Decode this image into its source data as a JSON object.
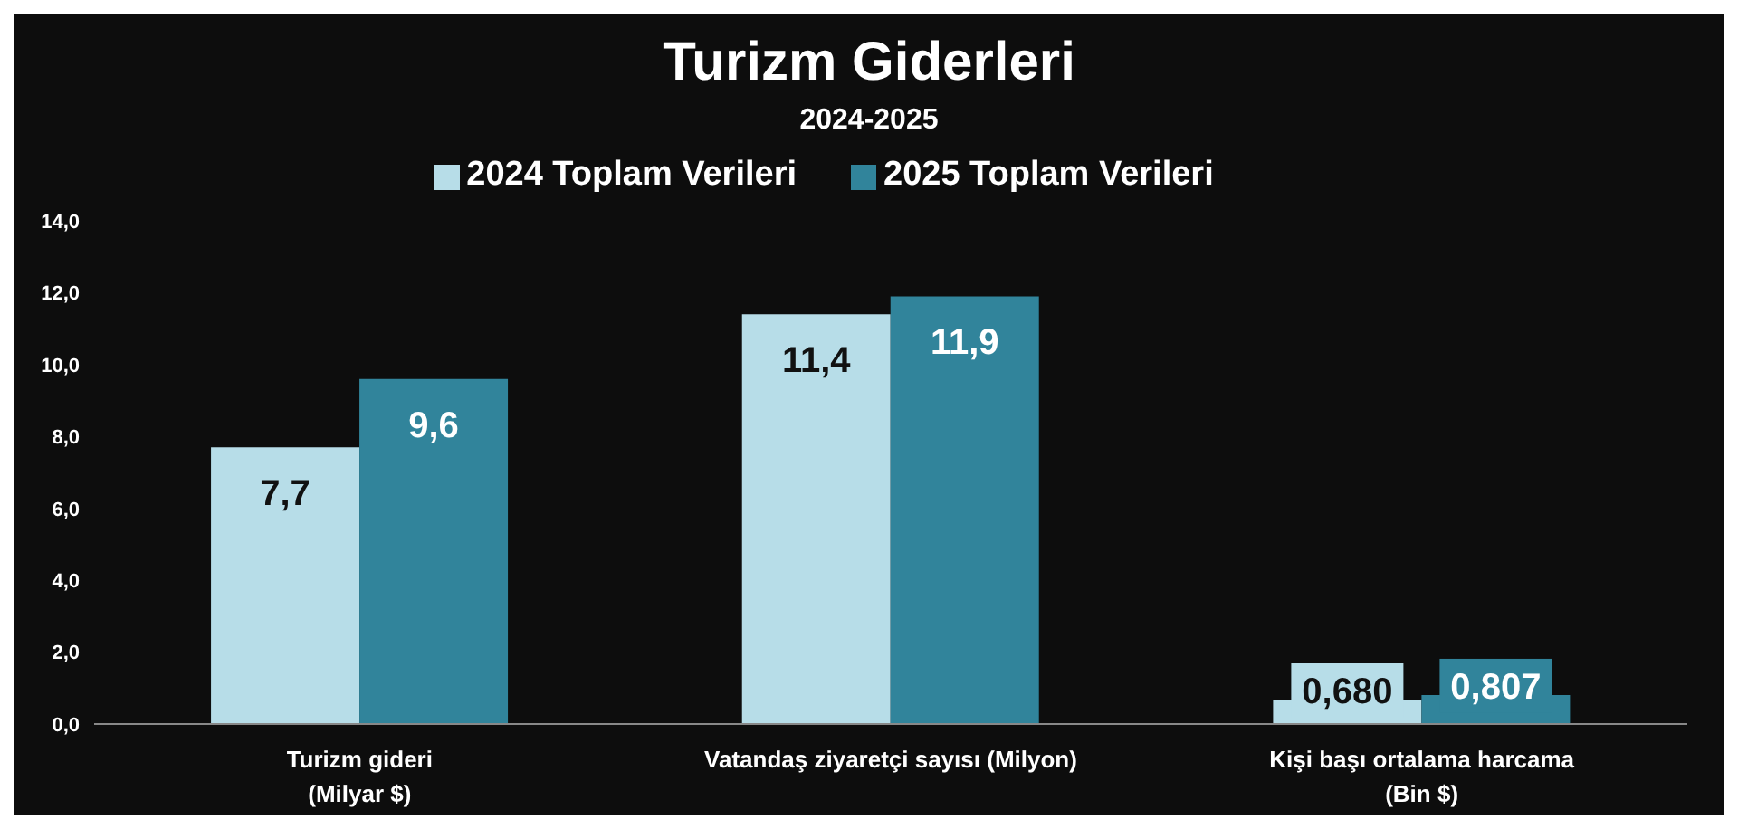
{
  "chart_data": {
    "type": "bar",
    "title": "Turizm Giderleri",
    "subtitle": "2024-2025",
    "categories": [
      "Turizm gideri\n(Milyar $)",
      "Vatandaş ziyaretçi sayısı (Milyon)",
      "Kişi başı ortalama harcama\n(Bin $)"
    ],
    "series": [
      {
        "name": "2024 Toplam Verileri",
        "color": "#b7dde8",
        "values": [
          7.7,
          11.4,
          0.68
        ],
        "value_labels": [
          "7,7",
          "11,4",
          "0,680"
        ]
      },
      {
        "name": "2025 Toplam Verileri",
        "color": "#31849b",
        "values": [
          9.6,
          11.9,
          0.807
        ],
        "value_labels": [
          "9,6",
          "11,9",
          "0,807"
        ]
      }
    ],
    "ylim": [
      0,
      14
    ],
    "yticks": [
      {
        "value": 0,
        "label": "0,0"
      },
      {
        "value": 2,
        "label": "2,0"
      },
      {
        "value": 4,
        "label": "4,0"
      },
      {
        "value": 6,
        "label": "6,0"
      },
      {
        "value": 8,
        "label": "8,0"
      },
      {
        "value": 10,
        "label": "10,0"
      },
      {
        "value": 12,
        "label": "12,0"
      },
      {
        "value": 14,
        "label": "14,0"
      }
    ],
    "grid": false,
    "legend": "top"
  }
}
